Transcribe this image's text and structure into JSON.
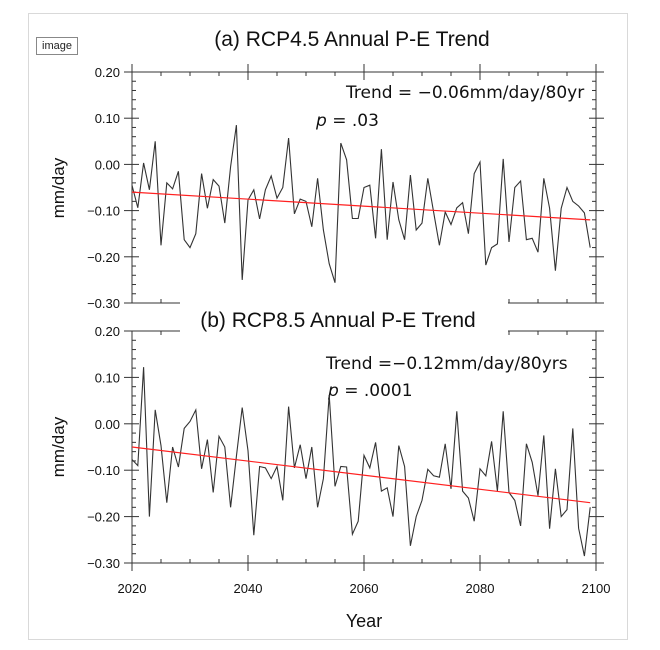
{
  "image_tag": "image",
  "colors": {
    "series": "#333333",
    "trend": "#ff2020",
    "axis": "#333333"
  },
  "chart_data": [
    {
      "type": "line",
      "title": "(a) RCP4.5 Annual P-E Trend",
      "xlabel": "",
      "ylabel": "mm/day",
      "xlim": [
        2020,
        2100
      ],
      "ylim": [
        -0.3,
        0.2
      ],
      "yticks": [
        "0.20",
        "0.10",
        "0.00",
        "−0.10",
        "−0.20",
        "−0.30"
      ],
      "ytick_values": [
        0.2,
        0.1,
        0.0,
        -0.1,
        -0.2,
        -0.3
      ],
      "annotation_trend": "Trend = −0.06mm/day/80yr",
      "annotation_p_label": "p",
      "annotation_p_value": " = .03",
      "trend_line": {
        "x": [
          2020,
          2099
        ],
        "y": [
          -0.06,
          -0.12
        ]
      },
      "x": [
        2020,
        2021,
        2022,
        2023,
        2024,
        2025,
        2026,
        2027,
        2028,
        2029,
        2030,
        2031,
        2032,
        2033,
        2034,
        2035,
        2036,
        2037,
        2038,
        2039,
        2040,
        2041,
        2042,
        2043,
        2044,
        2045,
        2046,
        2047,
        2048,
        2049,
        2050,
        2051,
        2052,
        2053,
        2054,
        2055,
        2056,
        2057,
        2058,
        2059,
        2060,
        2061,
        2062,
        2063,
        2064,
        2065,
        2066,
        2067,
        2068,
        2069,
        2070,
        2071,
        2072,
        2073,
        2074,
        2075,
        2076,
        2077,
        2078,
        2079,
        2080,
        2081,
        2082,
        2083,
        2084,
        2085,
        2086,
        2087,
        2088,
        2089,
        2090,
        2091,
        2092,
        2093,
        2094,
        2095,
        2096,
        2097,
        2098,
        2099
      ],
      "values": [
        -0.045,
        -0.094,
        0.003,
        -0.055,
        0.05,
        -0.175,
        -0.04,
        -0.053,
        -0.015,
        -0.163,
        -0.18,
        -0.15,
        -0.02,
        -0.095,
        -0.033,
        -0.047,
        -0.127,
        -0.005,
        0.085,
        -0.25,
        -0.077,
        -0.055,
        -0.118,
        -0.055,
        -0.025,
        -0.073,
        -0.05,
        0.057,
        -0.107,
        -0.075,
        -0.08,
        -0.135,
        -0.03,
        -0.142,
        -0.215,
        -0.256,
        0.046,
        0.01,
        -0.117,
        -0.117,
        -0.05,
        -0.045,
        -0.16,
        0.033,
        -0.163,
        -0.038,
        -0.12,
        -0.163,
        -0.023,
        -0.142,
        -0.127,
        -0.03,
        -0.103,
        -0.175,
        -0.103,
        -0.13,
        -0.094,
        -0.083,
        -0.15,
        -0.02,
        0.005,
        -0.218,
        -0.18,
        -0.172,
        0.012,
        -0.168,
        -0.05,
        -0.036,
        -0.163,
        -0.16,
        -0.19,
        -0.03,
        -0.095,
        -0.23,
        -0.095,
        -0.05,
        -0.08,
        -0.09,
        -0.105,
        -0.18
      ]
    },
    {
      "type": "line",
      "title": "(b) RCP8.5 Annual P-E Trend",
      "xlabel": "Year",
      "ylabel": "mm/day",
      "xlim": [
        2020,
        2100
      ],
      "ylim": [
        -0.3,
        0.2
      ],
      "xticks": [
        "2020",
        "2040",
        "2060",
        "2080",
        "2100"
      ],
      "xtick_values": [
        2020,
        2040,
        2060,
        2080,
        2100
      ],
      "yticks": [
        "0.20",
        "0.10",
        "0.00",
        "−0.10",
        "−0.20",
        "−0.30"
      ],
      "ytick_values": [
        0.2,
        0.1,
        0.0,
        -0.1,
        -0.2,
        -0.3
      ],
      "annotation_trend": "Trend =−0.12mm/day/80yrs",
      "annotation_p_label": "p",
      "annotation_p_value": " = .0001",
      "trend_line": {
        "x": [
          2020,
          2099
        ],
        "y": [
          -0.05,
          -0.17
        ]
      },
      "x": [
        2020,
        2021,
        2022,
        2023,
        2024,
        2025,
        2026,
        2027,
        2028,
        2029,
        2030,
        2031,
        2032,
        2033,
        2034,
        2035,
        2036,
        2037,
        2038,
        2039,
        2040,
        2041,
        2042,
        2043,
        2044,
        2045,
        2046,
        2047,
        2048,
        2049,
        2050,
        2051,
        2052,
        2053,
        2054,
        2055,
        2056,
        2057,
        2058,
        2059,
        2060,
        2061,
        2062,
        2063,
        2064,
        2065,
        2066,
        2067,
        2068,
        2069,
        2070,
        2071,
        2072,
        2073,
        2074,
        2075,
        2076,
        2077,
        2078,
        2079,
        2080,
        2081,
        2082,
        2083,
        2084,
        2085,
        2086,
        2087,
        2088,
        2089,
        2090,
        2091,
        2092,
        2093,
        2094,
        2095,
        2096,
        2097,
        2098,
        2099
      ],
      "values": [
        -0.077,
        -0.09,
        0.122,
        -0.2,
        0.03,
        -0.047,
        -0.17,
        -0.05,
        -0.093,
        -0.01,
        0.005,
        0.03,
        -0.097,
        -0.034,
        -0.148,
        -0.027,
        -0.05,
        -0.18,
        -0.07,
        0.035,
        -0.058,
        -0.24,
        -0.092,
        -0.095,
        -0.118,
        -0.092,
        -0.165,
        0.037,
        -0.095,
        -0.045,
        -0.118,
        -0.05,
        -0.18,
        -0.118,
        0.062,
        -0.135,
        -0.092,
        -0.093,
        -0.238,
        -0.21,
        -0.068,
        -0.095,
        -0.04,
        -0.145,
        -0.138,
        -0.2,
        -0.047,
        -0.092,
        -0.263,
        -0.2,
        -0.165,
        -0.098,
        -0.112,
        -0.115,
        -0.043,
        -0.14,
        0.027,
        -0.145,
        -0.16,
        -0.21,
        -0.097,
        -0.112,
        -0.038,
        -0.145,
        0.027,
        -0.148,
        -0.165,
        -0.22,
        -0.043,
        -0.083,
        -0.155,
        -0.025,
        -0.226,
        -0.097,
        -0.2,
        -0.185,
        -0.01,
        -0.225,
        -0.285,
        -0.18
      ]
    }
  ]
}
